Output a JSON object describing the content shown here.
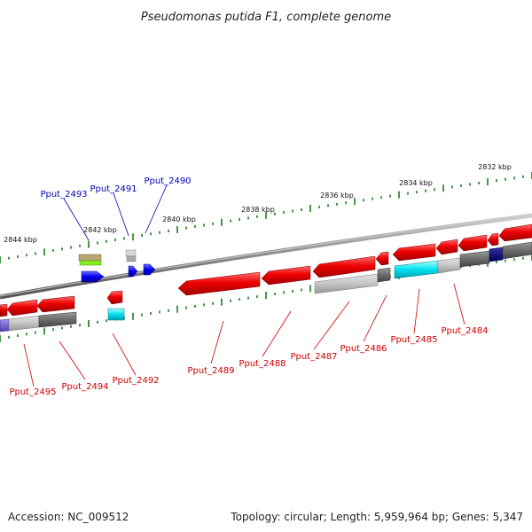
{
  "title": "Pseudomonas putida F1, complete genome",
  "footer": {
    "accession": "Accession: NC_009512",
    "stats": "Topology: circular; Length: 5,959,964 bp; Genes: 5,347"
  },
  "colors": {
    "forward_label": "#0000bb",
    "reverse_label": "#cc0000",
    "tick": "#1a7a1a",
    "backbone": "#888888"
  },
  "scale": {
    "unit": "kbp",
    "ticks": [
      {
        "label": "2832 kbp",
        "kbp": 2832
      },
      {
        "label": "2834 kbp",
        "kbp": 2834
      },
      {
        "label": "2836 kbp",
        "kbp": 2836
      },
      {
        "label": "2838 kbp",
        "kbp": 2838
      },
      {
        "label": "2840 kbp",
        "kbp": 2840
      },
      {
        "label": "2842 kbp",
        "kbp": 2842
      },
      {
        "label": "2844 kbp",
        "kbp": 2844
      }
    ]
  },
  "genes_forward": [
    {
      "label": "Pput_2493"
    },
    {
      "label": "Pput_2491"
    },
    {
      "label": "Pput_2490"
    }
  ],
  "genes_reverse": [
    {
      "label": "Pput_2495"
    },
    {
      "label": "Pput_2494"
    },
    {
      "label": "Pput_2492"
    },
    {
      "label": "Pput_2489"
    },
    {
      "label": "Pput_2488"
    },
    {
      "label": "Pput_2487"
    },
    {
      "label": "Pput_2486"
    },
    {
      "label": "Pput_2485"
    },
    {
      "label": "Pput_2484"
    }
  ]
}
